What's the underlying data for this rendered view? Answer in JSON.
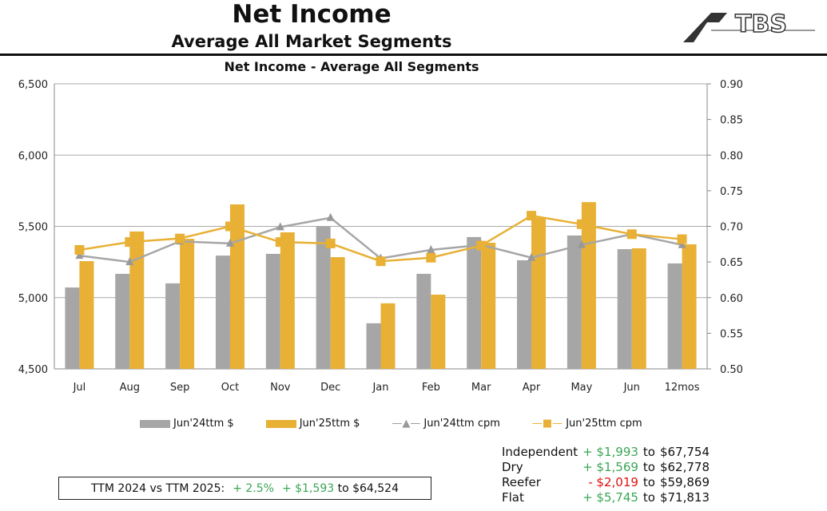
{
  "header": {
    "title": "Net Income",
    "subtitle": "Average All Market Segments",
    "logo_text": "ATBS"
  },
  "colors": {
    "gray": "#a6a6a6",
    "gold": "#e8b035",
    "positive": "#3aa655",
    "negative": "#dd1111"
  },
  "chart_data": {
    "type": "bar+line",
    "title": "Net Income - Average All Segments",
    "categories": [
      "Jul",
      "Aug",
      "Sep",
      "Oct",
      "Nov",
      "Dec",
      "Jan",
      "Feb",
      "Mar",
      "Apr",
      "May",
      "Jun",
      "12mos"
    ],
    "ylim": [
      4500,
      6500
    ],
    "yticks": [
      "4,500",
      "5,000",
      "5,500",
      "6,000",
      "6,500"
    ],
    "y2lim": [
      0.5,
      0.9
    ],
    "y2ticks": [
      "0.50",
      "0.55",
      "0.60",
      "0.65",
      "0.70",
      "0.75",
      "0.80",
      "0.85",
      "0.90"
    ],
    "grid": true,
    "legend": "bottom",
    "series": [
      {
        "name": "Jun'24ttm $",
        "type": "bar",
        "axis": "left",
        "values": [
          5071,
          5167,
          5100,
          5295,
          5307,
          5497,
          4820,
          5167,
          5425,
          5262,
          5436,
          5340,
          5240
        ]
      },
      {
        "name": "Jun'25ttm $",
        "type": "bar",
        "axis": "left",
        "values": [
          5256,
          5464,
          5413,
          5654,
          5458,
          5284,
          4960,
          5021,
          5385,
          5560,
          5670,
          5346,
          5374
        ]
      },
      {
        "name": "Jun'24ttm cpm",
        "type": "line",
        "axis": "right",
        "values": [
          0.659,
          0.65,
          0.679,
          0.676,
          0.699,
          0.712,
          0.655,
          0.667,
          0.674,
          0.656,
          0.674,
          0.689,
          0.674
        ]
      },
      {
        "name": "Jun'25ttm cpm",
        "type": "line",
        "axis": "right",
        "values": [
          0.667,
          0.678,
          0.683,
          0.7,
          0.678,
          0.676,
          0.651,
          0.656,
          0.673,
          0.715,
          0.703,
          0.689,
          0.682
        ]
      }
    ]
  },
  "ttm": {
    "label": "TTM 2024 vs TTM 2025:",
    "pct": "+ 2.5%",
    "delta": "+ $1,593",
    "to": "to $64,524"
  },
  "segments": [
    {
      "name": "Independent",
      "delta": "+ $1,993",
      "to": "to",
      "value": "$67,754",
      "sign": "pos"
    },
    {
      "name": "Dry",
      "delta": "+ $1,569",
      "to": "to",
      "value": "$62,778",
      "sign": "pos"
    },
    {
      "name": "Reefer",
      "delta": "- $2,019",
      "to": "to",
      "value": "$59,869",
      "sign": "neg"
    },
    {
      "name": "Flat",
      "delta": "+ $5,745",
      "to": "to",
      "value": "$71,813",
      "sign": "pos"
    }
  ]
}
